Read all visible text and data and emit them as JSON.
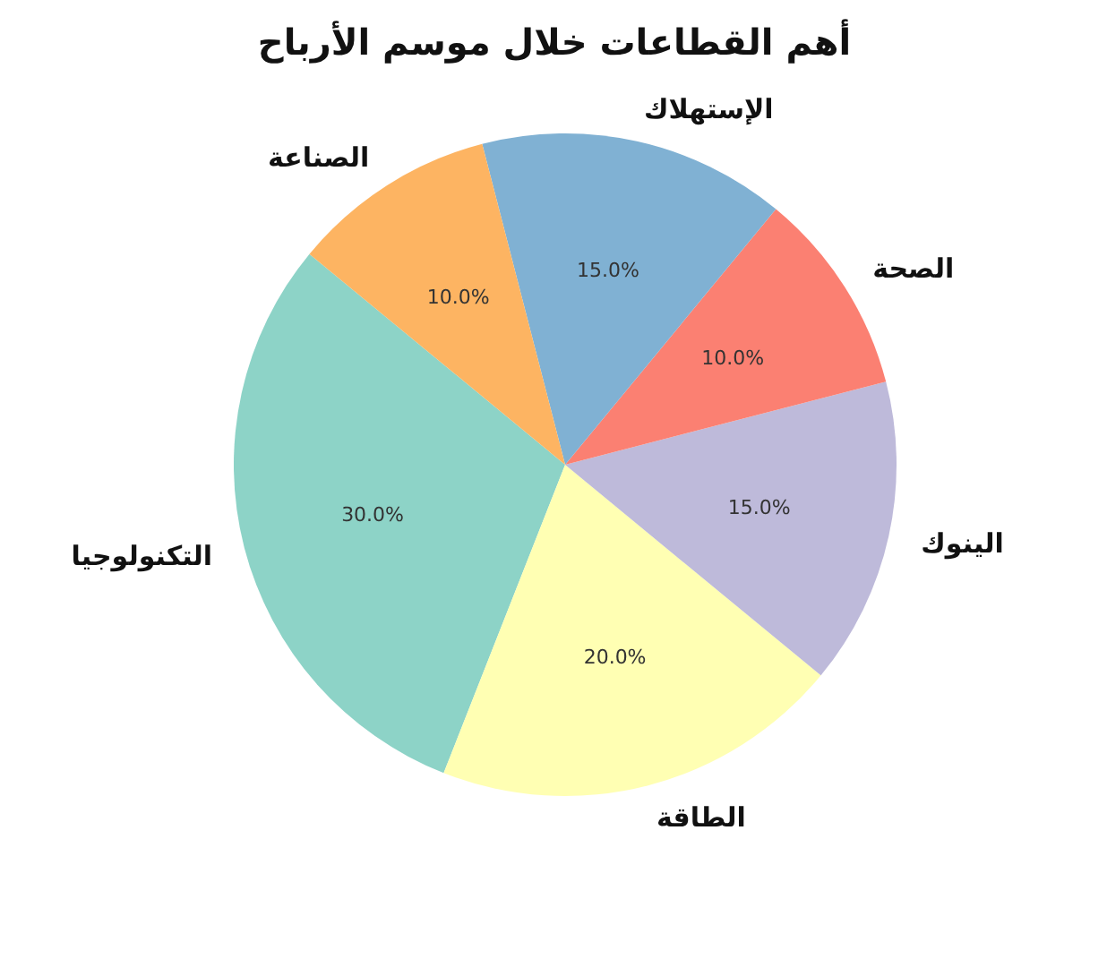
{
  "chart_data": {
    "type": "pie",
    "title": "أهم القطاعات خلال موسم الأرباح",
    "categories": [
      "التكنولوجيا",
      "الطاقة",
      "الينوك",
      "الصحة",
      "الإستهلاك",
      "الصناعة"
    ],
    "values": [
      30,
      20,
      15,
      10,
      15,
      10
    ],
    "colors": [
      "#8dd3c7",
      "#ffffb3",
      "#bebada",
      "#fb8072",
      "#80b1d3",
      "#fdb462"
    ],
    "value_labels": [
      "30.0%",
      "20.0%",
      "15.0%",
      "10.0%",
      "15.0%",
      "10.0%"
    ]
  }
}
